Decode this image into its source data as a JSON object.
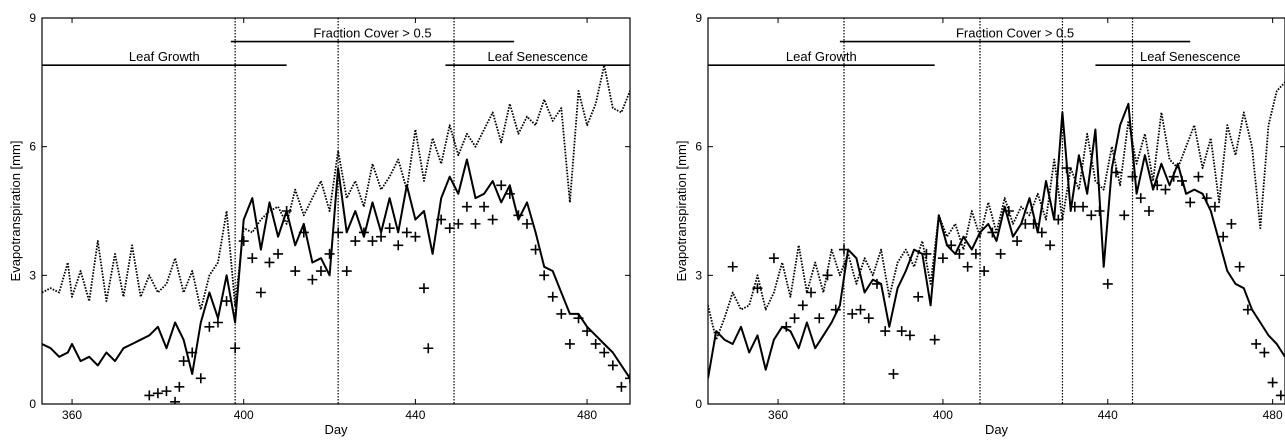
{
  "chart_data": [
    {
      "type": "line",
      "xlabel": "Day",
      "ylabel": "Evapotranspiration  [mm]",
      "xlim": [
        353,
        490
      ],
      "ylim": [
        0,
        9
      ],
      "xticks": [
        360,
        400,
        440,
        480
      ],
      "yticks": [
        0,
        3,
        6,
        9
      ],
      "xtick_labels": [
        "360",
        "400",
        "440",
        "480"
      ],
      "ytick_labels": [
        "0",
        "3",
        "6",
        "9"
      ],
      "grid": false,
      "vlines": [
        398,
        422,
        449
      ],
      "phases": [
        {
          "label": "Leaf Growth",
          "x0": 353,
          "x1": 410,
          "y": 7.9
        },
        {
          "label": "Fraction Cover > 0.5",
          "x0": 397,
          "x1": 463,
          "y": 8.45
        },
        {
          "label": "Leaf Senescence",
          "x0": 447,
          "x1": 490,
          "y": 7.9
        }
      ],
      "series": [
        {
          "style": "dotted-line",
          "x": [
            353,
            355,
            357,
            359,
            360,
            362,
            364,
            366,
            368,
            370,
            372,
            374,
            376,
            378,
            380,
            382,
            384,
            386,
            388,
            390,
            392,
            394,
            396,
            398,
            400,
            402,
            404,
            406,
            408,
            410,
            412,
            414,
            416,
            418,
            420,
            422,
            424,
            426,
            428,
            430,
            432,
            434,
            436,
            438,
            440,
            442,
            444,
            446,
            448,
            450,
            452,
            454,
            456,
            458,
            460,
            462,
            464,
            466,
            468,
            470,
            472,
            474,
            476,
            478,
            480,
            482,
            484,
            486,
            488,
            490
          ],
          "y": [
            2.6,
            2.7,
            2.6,
            3.3,
            2.5,
            3.1,
            2.4,
            3.8,
            2.4,
            3.5,
            2.5,
            3.7,
            2.5,
            3.0,
            2.6,
            2.8,
            3.4,
            2.6,
            3.1,
            2.2,
            3.0,
            3.3,
            4.5,
            2.3,
            4.1,
            4.0,
            4.3,
            4.5,
            4.6,
            4.2,
            5.0,
            4.4,
            4.8,
            5.2,
            4.5,
            5.9,
            4.8,
            5.2,
            4.6,
            5.6,
            5.0,
            5.3,
            5.7,
            5.0,
            6.4,
            5.2,
            6.2,
            5.6,
            6.5,
            5.8,
            6.3,
            6.0,
            6.4,
            6.8,
            6.1,
            7.0,
            6.3,
            6.7,
            6.5,
            7.1,
            6.6,
            6.9,
            4.7,
            7.3,
            6.5,
            7.0,
            7.9,
            6.9,
            6.8,
            7.3
          ]
        },
        {
          "style": "solid-line",
          "x": [
            353,
            355,
            357,
            359,
            360,
            362,
            364,
            366,
            368,
            370,
            372,
            374,
            376,
            378,
            380,
            382,
            384,
            386,
            388,
            390,
            392,
            394,
            396,
            398,
            400,
            402,
            404,
            406,
            408,
            410,
            412,
            414,
            416,
            418,
            420,
            422,
            424,
            426,
            428,
            430,
            432,
            434,
            436,
            438,
            440,
            442,
            444,
            446,
            448,
            450,
            452,
            454,
            456,
            458,
            460,
            462,
            464,
            466,
            468,
            470,
            472,
            474,
            476,
            478,
            480,
            482,
            484,
            486,
            488,
            490
          ],
          "y": [
            1.4,
            1.3,
            1.1,
            1.2,
            1.4,
            1.0,
            1.1,
            0.9,
            1.2,
            1.0,
            1.3,
            1.4,
            1.5,
            1.6,
            1.8,
            1.3,
            1.9,
            1.5,
            0.7,
            1.9,
            2.6,
            2.0,
            3.0,
            1.9,
            4.3,
            4.8,
            3.6,
            4.7,
            3.9,
            4.5,
            3.7,
            4.2,
            3.3,
            3.4,
            3.0,
            5.5,
            4.0,
            4.5,
            3.9,
            4.7,
            4.0,
            4.8,
            4.0,
            5.1,
            4.3,
            4.5,
            3.5,
            4.8,
            5.3,
            4.9,
            5.7,
            4.8,
            4.9,
            5.2,
            4.7,
            5.1,
            4.3,
            4.7,
            4.0,
            3.2,
            3.1,
            2.6,
            2.1,
            2.1,
            1.8,
            1.6,
            1.4,
            1.2,
            0.9,
            0.6
          ]
        },
        {
          "style": "plus-markers",
          "x": [
            378,
            380,
            382,
            384,
            385,
            386,
            388,
            390,
            392,
            394,
            396,
            398,
            400,
            402,
            404,
            406,
            408,
            410,
            412,
            414,
            416,
            418,
            420,
            422,
            424,
            426,
            428,
            430,
            432,
            434,
            436,
            438,
            440,
            442,
            443,
            446,
            448,
            450,
            452,
            454,
            456,
            458,
            460,
            462,
            464,
            466,
            468,
            470,
            472,
            474,
            476,
            478,
            480,
            482,
            484,
            486,
            488,
            490
          ],
          "y": [
            0.2,
            0.25,
            0.3,
            0.05,
            0.4,
            1.0,
            1.2,
            0.6,
            1.8,
            1.9,
            2.4,
            1.3,
            3.8,
            3.4,
            2.6,
            3.3,
            3.5,
            4.5,
            3.1,
            4.0,
            2.9,
            3.1,
            3.5,
            4.0,
            3.1,
            3.8,
            4.0,
            3.8,
            3.9,
            4.1,
            3.7,
            4.0,
            3.9,
            2.7,
            1.3,
            4.3,
            4.1,
            4.2,
            4.6,
            4.2,
            4.6,
            4.3,
            5.1,
            4.9,
            4.4,
            4.2,
            3.6,
            3.0,
            2.5,
            2.1,
            1.4,
            2.0,
            1.7,
            1.4,
            1.2,
            0.9,
            0.4,
            0.6
          ]
        }
      ]
    },
    {
      "type": "line",
      "xlabel": "Day",
      "ylabel": "Evapotranspiration  [mm]",
      "xlim": [
        343,
        483
      ],
      "ylim": [
        0,
        9
      ],
      "xticks": [
        360,
        400,
        440,
        480
      ],
      "yticks": [
        0,
        3,
        6,
        9
      ],
      "xtick_labels": [
        "360",
        "400",
        "440",
        "480"
      ],
      "ytick_labels": [
        "0",
        "3",
        "6",
        "9"
      ],
      "grid": false,
      "vlines": [
        376,
        409,
        429,
        446
      ],
      "phases": [
        {
          "label": "Leaf  Growth",
          "x0": 343,
          "x1": 398,
          "y": 7.9
        },
        {
          "label": "Fraction Cover > 0.5",
          "x0": 375,
          "x1": 460,
          "y": 8.45
        },
        {
          "label": "Leaf  Senescence",
          "x0": 437,
          "x1": 483,
          "y": 7.9
        }
      ],
      "series": [
        {
          "style": "dotted-line",
          "x": [
            343,
            345,
            347,
            349,
            351,
            353,
            355,
            357,
            359,
            361,
            363,
            365,
            367,
            369,
            371,
            373,
            375,
            377,
            379,
            381,
            383,
            385,
            387,
            389,
            391,
            393,
            395,
            397,
            399,
            401,
            403,
            405,
            407,
            409,
            411,
            413,
            415,
            417,
            419,
            421,
            423,
            425,
            427,
            429,
            431,
            433,
            435,
            437,
            439,
            441,
            443,
            445,
            447,
            449,
            451,
            453,
            455,
            457,
            459,
            461,
            463,
            465,
            467,
            469,
            471,
            473,
            475,
            477,
            479,
            481,
            483
          ],
          "y": [
            2.3,
            1.5,
            2.0,
            2.6,
            2.2,
            2.3,
            3.0,
            2.2,
            2.6,
            3.3,
            2.5,
            3.7,
            2.6,
            3.3,
            2.6,
            3.6,
            3.0,
            3.5,
            2.8,
            3.4,
            3.0,
            3.6,
            2.5,
            3.3,
            3.6,
            3.2,
            3.8,
            2.8,
            4.4,
            3.9,
            4.2,
            3.6,
            4.5,
            3.9,
            4.7,
            4.0,
            4.8,
            4.2,
            4.6,
            4.4,
            4.9,
            4.3,
            5.7,
            4.3,
            5.5,
            5.0,
            6.3,
            5.2,
            5.0,
            6.0,
            5.1,
            6.6,
            5.6,
            6.3,
            5.2,
            6.8,
            5.7,
            5.5,
            6.0,
            6.5,
            5.5,
            6.2,
            4.7,
            6.5,
            5.8,
            6.8,
            6.0,
            4.1,
            6.5,
            7.3,
            7.5
          ]
        },
        {
          "style": "solid-line",
          "x": [
            343,
            345,
            347,
            349,
            351,
            353,
            355,
            357,
            359,
            361,
            363,
            365,
            367,
            369,
            371,
            373,
            375,
            377,
            379,
            381,
            383,
            385,
            387,
            389,
            391,
            393,
            395,
            397,
            399,
            401,
            403,
            405,
            407,
            409,
            411,
            413,
            415,
            417,
            419,
            421,
            423,
            425,
            427,
            429,
            431,
            433,
            435,
            437,
            439,
            441,
            443,
            445,
            447,
            449,
            451,
            453,
            455,
            457,
            459,
            461,
            463,
            465,
            467,
            469,
            471,
            473,
            475,
            477,
            479,
            481,
            483
          ],
          "y": [
            0.6,
            1.7,
            1.5,
            1.4,
            1.8,
            1.2,
            1.6,
            0.8,
            1.5,
            1.8,
            1.7,
            1.3,
            1.9,
            1.3,
            1.6,
            1.9,
            2.3,
            3.6,
            3.4,
            2.6,
            2.9,
            2.8,
            1.8,
            2.7,
            3.1,
            3.6,
            3.5,
            2.3,
            4.4,
            3.7,
            3.5,
            3.9,
            3.6,
            4.0,
            4.2,
            3.8,
            4.6,
            3.9,
            4.2,
            4.8,
            4.0,
            5.2,
            4.3,
            6.8,
            4.5,
            5.8,
            4.9,
            6.4,
            3.2,
            5.5,
            6.5,
            7.0,
            4.9,
            5.8,
            5.0,
            5.6,
            5.1,
            5.6,
            4.9,
            5.0,
            4.9,
            4.5,
            3.8,
            3.1,
            2.8,
            2.7,
            2.2,
            1.9,
            1.6,
            1.4,
            1.1
          ]
        },
        {
          "style": "plus-markers",
          "x": [
            349,
            355,
            359,
            362,
            364,
            366,
            368,
            370,
            372,
            374,
            376,
            378,
            380,
            382,
            384,
            386,
            388,
            390,
            392,
            394,
            396,
            398,
            400,
            402,
            404,
            406,
            408,
            410,
            412,
            414,
            416,
            418,
            420,
            422,
            424,
            426,
            428,
            430,
            432,
            434,
            436,
            438,
            440,
            442,
            444,
            446,
            448,
            450,
            452,
            454,
            456,
            458,
            460,
            462,
            464,
            466,
            468,
            470,
            472,
            474,
            476,
            478,
            480,
            482
          ],
          "y": [
            3.2,
            2.7,
            3.4,
            1.8,
            2.0,
            2.3,
            2.6,
            2.0,
            3.0,
            2.2,
            3.6,
            2.1,
            2.2,
            2.0,
            2.8,
            1.7,
            0.7,
            1.7,
            1.6,
            2.5,
            3.5,
            1.5,
            3.4,
            3.7,
            3.5,
            3.2,
            3.5,
            3.1,
            4.0,
            3.5,
            4.5,
            3.8,
            4.2,
            4.2,
            4.0,
            3.7,
            4.3,
            5.5,
            4.6,
            4.6,
            4.4,
            4.5,
            2.8,
            5.4,
            4.4,
            5.3,
            4.8,
            4.5,
            5.1,
            5.0,
            5.3,
            5.2,
            4.7,
            5.3,
            4.8,
            4.6,
            3.9,
            4.2,
            3.2,
            2.2,
            1.4,
            1.2,
            0.5,
            0.2
          ]
        }
      ]
    }
  ]
}
